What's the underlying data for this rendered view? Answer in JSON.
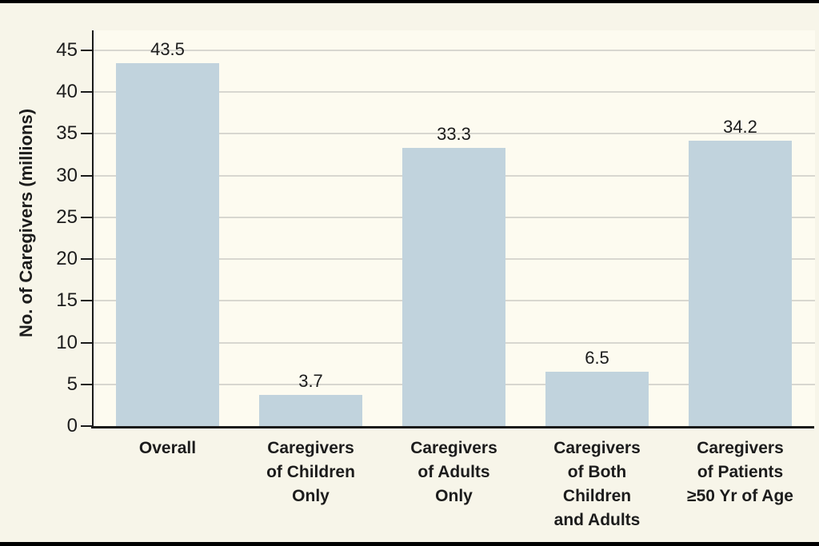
{
  "figure": {
    "y_axis_title": "No. of Caregivers (millions)"
  },
  "chart_data": {
    "type": "bar",
    "title": "",
    "xlabel": "",
    "ylabel": "No. of Caregivers (millions)",
    "categories": [
      "Overall",
      "Caregivers of Children Only",
      "Caregivers of Adults Only",
      "Caregivers of Both Children and Adults",
      "Caregivers of Patients ≥50 Yr of Age"
    ],
    "category_lines": [
      [
        "Overall"
      ],
      [
        "Caregivers",
        "of Children",
        "Only"
      ],
      [
        "Caregivers",
        "of Adults",
        "Only"
      ],
      [
        "Caregivers",
        "of Both",
        "Children",
        "and Adults"
      ],
      [
        "Caregivers",
        "of Patients",
        "≥50 Yr of Age"
      ]
    ],
    "values": [
      43.5,
      3.7,
      33.3,
      6.5,
      34.2
    ],
    "value_labels": [
      "43.5",
      "3.7",
      "33.3",
      "6.5",
      "34.2"
    ],
    "ylim": [
      0,
      45
    ],
    "yticks": [
      0,
      5,
      10,
      15,
      20,
      25,
      30,
      35,
      40,
      45
    ],
    "grid": true,
    "legend": false,
    "colors": {
      "bar": "#C1D3DD",
      "background": "#F7F5E9",
      "plot_background": "#FDFBF0",
      "gridline": "#D8D7D0",
      "axis": "#1A1A1A",
      "text": "#1C1C1C",
      "rule": "#000000"
    }
  }
}
